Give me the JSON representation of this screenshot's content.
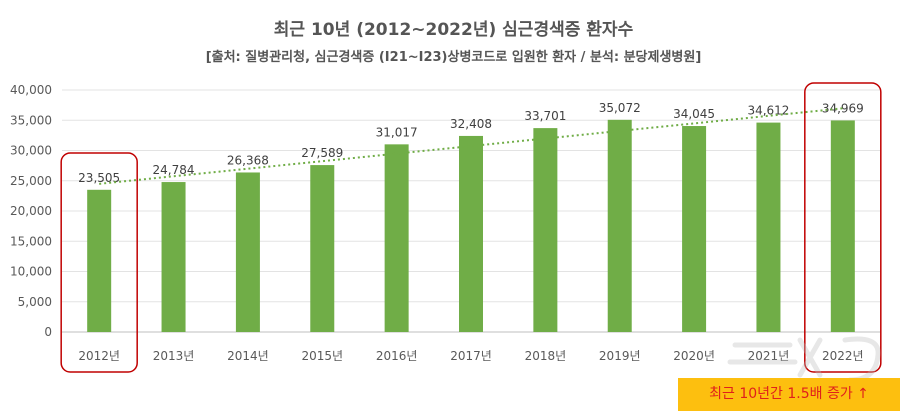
{
  "chart_data": {
    "type": "bar",
    "title": "최근 10년 (2012~2022년) 심근경색증 환자수",
    "subtitle": "[출처: 질병관리청, 심근경색증 (I21~I23)상병코드로 입원한 환자 / 분석: 분당제생병원]",
    "categories": [
      "2012년",
      "2013년",
      "2014년",
      "2015년",
      "2016년",
      "2017년",
      "2018년",
      "2019년",
      "2020년",
      "2021년",
      "2022년"
    ],
    "values": [
      23505,
      24784,
      26368,
      27589,
      31017,
      32408,
      33701,
      35072,
      34045,
      34612,
      34969
    ],
    "data_labels": [
      "23,505",
      "24,784",
      "26,368",
      "27,589",
      "31,017",
      "32,408",
      "33,701",
      "35,072",
      "34,045",
      "34,612",
      "34,969"
    ],
    "ylim": [
      0,
      40000
    ],
    "yticks": [
      "0",
      "5,000",
      "10,000",
      "15,000",
      "20,000",
      "25,000",
      "30,000",
      "35,000",
      "40,000"
    ],
    "trendline": {
      "type": "linear",
      "style": "dotted",
      "color": "#70ad47"
    },
    "bar_color": "#70ad47",
    "highlight_color": "#c00000",
    "highlighted_categories": [
      "2012년",
      "2022년"
    ],
    "grid": true,
    "annotation": "최근 10년간 1.5배 증가 ↑",
    "annotation_bg": "#fdbf0f",
    "annotation_color": "#e0201b"
  },
  "watermark": "뉴스1"
}
